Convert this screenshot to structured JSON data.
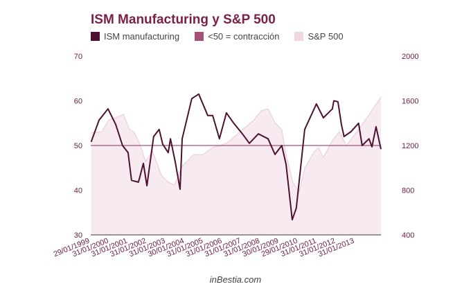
{
  "chart_data": {
    "type": "line",
    "title": "ISM Manufacturing y S&P 500",
    "legend": [
      "ISM manufacturing",
      "<50 = contracción",
      "S&P 500"
    ],
    "legend_position": "top-left",
    "left_axis": {
      "ylim": [
        30,
        70
      ],
      "ticks": [
        "70",
        "60",
        "50",
        "40",
        "30"
      ]
    },
    "right_axis": {
      "ylim": [
        400,
        2000
      ],
      "ticks": [
        "2000",
        "1600",
        "1200",
        "800",
        "400"
      ]
    },
    "x_tick_labels": [
      "29/01/1999",
      "31/01/2000",
      "31/01/2001",
      "31/01/2002",
      "31/01/2003",
      "30/01/2004",
      "31/01/2005",
      "31/01/2006",
      "31/01/2007",
      "31/01/2008",
      "30/01/2009",
      "29/01/2010",
      "31/01/2011",
      "31/01/2012",
      "31/01/2013"
    ],
    "xlim": [
      1999.0,
      2013.16
    ],
    "contraction_threshold": 50,
    "series": [
      {
        "name": "ISM manufacturing",
        "axis": "left",
        "color": "#4d1030",
        "x": [
          1999.02,
          1999.41,
          1999.84,
          2000.22,
          2000.55,
          2000.82,
          2000.99,
          2001.33,
          2001.57,
          2001.74,
          2002.07,
          2002.34,
          2002.51,
          2002.78,
          2002.89,
          2003.12,
          2003.36,
          2003.46,
          2003.93,
          2004.27,
          2004.71,
          2004.95,
          2005.28,
          2005.62,
          2005.96,
          2006.4,
          2006.74,
          2007.18,
          2007.65,
          2007.99,
          2008.32,
          2008.53,
          2008.83,
          2009.03,
          2009.44,
          2010.01,
          2010.35,
          2010.79,
          2010.86,
          2011.06,
          2011.23,
          2011.36,
          2011.7,
          2012.07,
          2012.24,
          2012.58,
          2012.72,
          2012.92,
          2013.16
        ],
        "values": [
          50.8,
          55.7,
          58.2,
          54.7,
          50.0,
          48.4,
          42.2,
          41.8,
          46.0,
          41.0,
          52.0,
          53.6,
          50.3,
          48.4,
          51.5,
          46.4,
          40.2,
          51.5,
          60.5,
          61.5,
          56.7,
          56.7,
          51.5,
          57.3,
          55.1,
          52.6,
          50.5,
          52.6,
          51.5,
          48.0,
          50.0,
          45.8,
          33.4,
          36.0,
          53.6,
          59.3,
          56.2,
          58.2,
          60.0,
          59.8,
          54.7,
          52.0,
          53.1,
          55.0,
          50.0,
          51.5,
          49.7,
          54.2,
          49.2
        ]
      },
      {
        "name": "S&P 500",
        "axis": "right",
        "color": "#ebd0dc",
        "x": [
          1999.02,
          1999.54,
          1999.88,
          2000.22,
          2000.59,
          2000.89,
          2001.09,
          2001.26,
          2001.43,
          2001.67,
          2002.01,
          2002.45,
          2002.78,
          2003.09,
          2003.46,
          2004.03,
          2004.47,
          2004.95,
          2005.62,
          2006.3,
          2006.97,
          2007.31,
          2007.65,
          2007.99,
          2008.32,
          2008.53,
          2008.86,
          2009.17,
          2009.44,
          2009.88,
          2010.11,
          2010.35,
          2010.79,
          2011.13,
          2011.47,
          2011.91,
          2012.48,
          2013.16
        ],
        "values": [
          1313,
          1324,
          1429,
          1448,
          1479,
          1342,
          1324,
          1262,
          1200,
          1057,
          1150,
          933,
          871,
          846,
          1014,
          1119,
          1119,
          1181,
          1218,
          1324,
          1429,
          1510,
          1528,
          1404,
          1342,
          1119,
          871,
          784,
          995,
          1138,
          1181,
          1094,
          1243,
          1324,
          1200,
          1305,
          1448,
          1634
        ]
      }
    ]
  },
  "colors": {
    "title": "#7b1f4a",
    "ism": "#4d1030",
    "contraction": "#a3527a",
    "sp500_fill": "#f7eaf0",
    "sp500_line": "#ebd0dc"
  },
  "footer": "inBestia.com"
}
